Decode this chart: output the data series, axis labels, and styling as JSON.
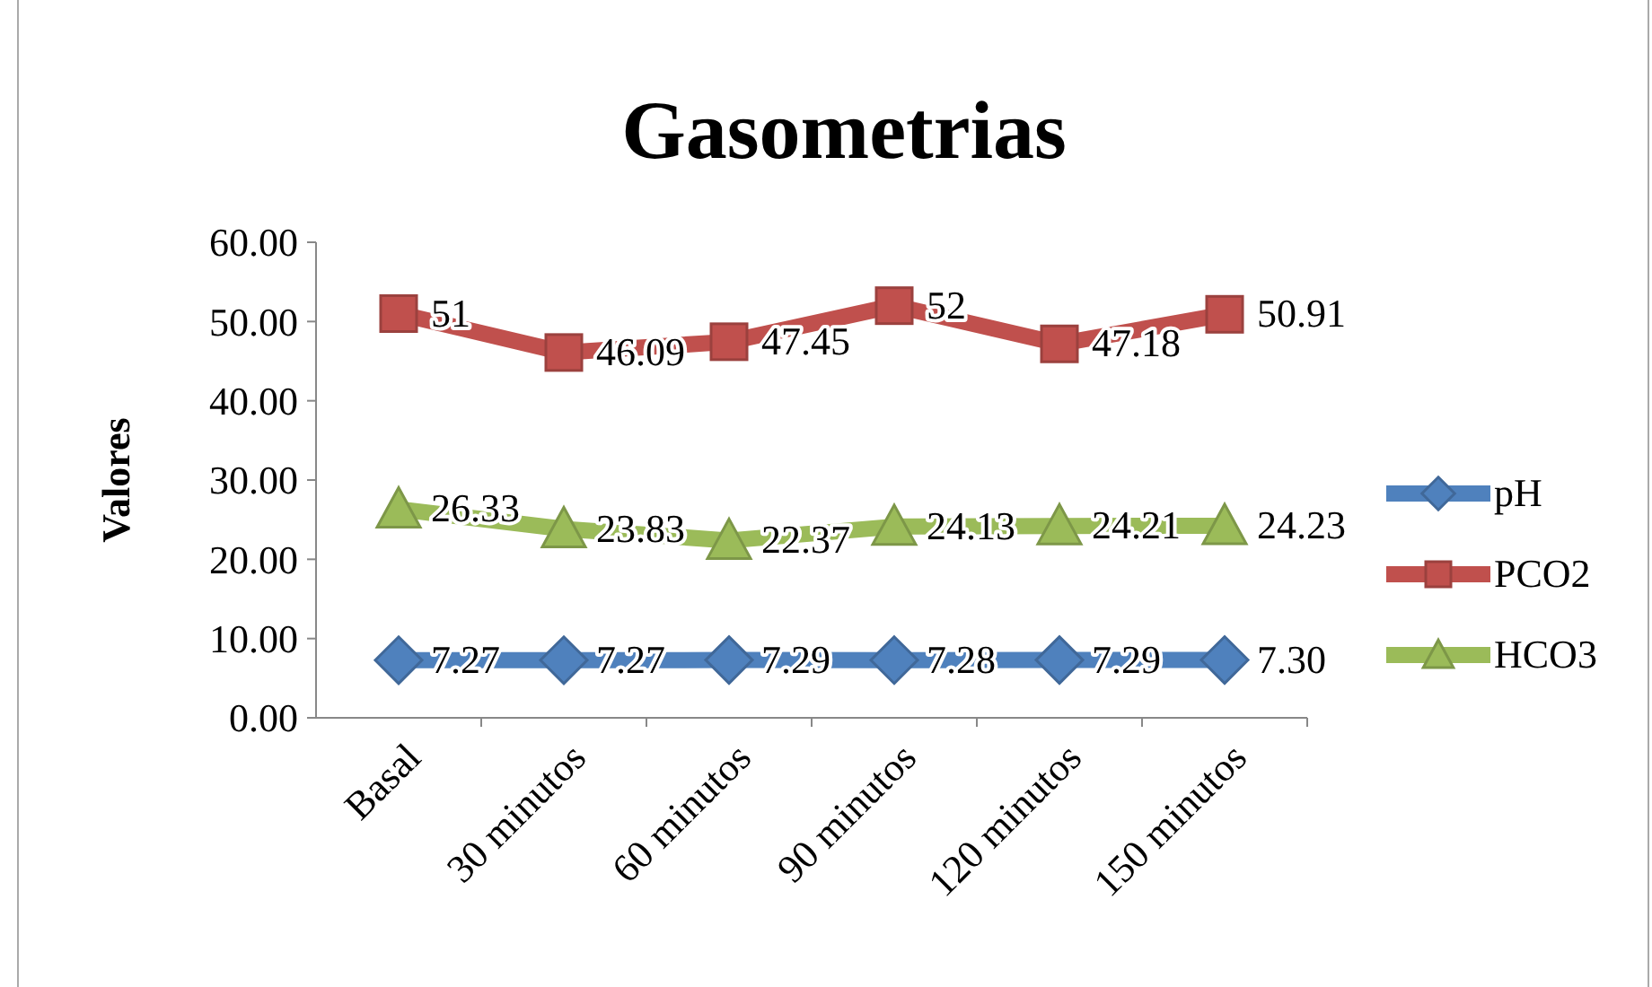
{
  "chart_data": {
    "type": "line",
    "title": "Gasometrias",
    "ylabel": "Valores",
    "categories": [
      "Basal",
      "30 minutos",
      "60 minutos",
      "90 minutos",
      "120 minutos",
      "150 minutos"
    ],
    "series": [
      {
        "name": "pH",
        "color": "#4f81bd",
        "marker": "diamond",
        "values": [
          7.27,
          7.27,
          7.29,
          7.28,
          7.29,
          7.3
        ],
        "value_labels": [
          "7.27",
          "7.27",
          "7.29",
          "7.28",
          "7.29",
          "7.30"
        ]
      },
      {
        "name": "PCO2",
        "color": "#c0504d",
        "marker": "square",
        "values": [
          51,
          46.09,
          47.45,
          52,
          47.18,
          50.91
        ],
        "value_labels": [
          "51",
          "46.09",
          "47.45",
          "52",
          "47.18",
          "50.91"
        ]
      },
      {
        "name": "HCO3",
        "color": "#9bbb59",
        "marker": "triangle",
        "values": [
          26.33,
          23.83,
          22.37,
          24.13,
          24.21,
          24.23
        ],
        "value_labels": [
          "26.33",
          "23.83",
          "22.37",
          "24.13",
          "24.21",
          "24.23"
        ]
      }
    ],
    "ylim": [
      0,
      60
    ],
    "yticks": [
      {
        "value": 0,
        "label": "0.00"
      },
      {
        "value": 10,
        "label": "10.00"
      },
      {
        "value": 20,
        "label": "20.00"
      },
      {
        "value": 30,
        "label": "30.00"
      },
      {
        "value": 40,
        "label": "40.00"
      },
      {
        "value": 50,
        "label": "50.00"
      },
      {
        "value": 60,
        "label": "60.00"
      }
    ],
    "legend": "right",
    "grid": false,
    "line_style": "solid"
  }
}
